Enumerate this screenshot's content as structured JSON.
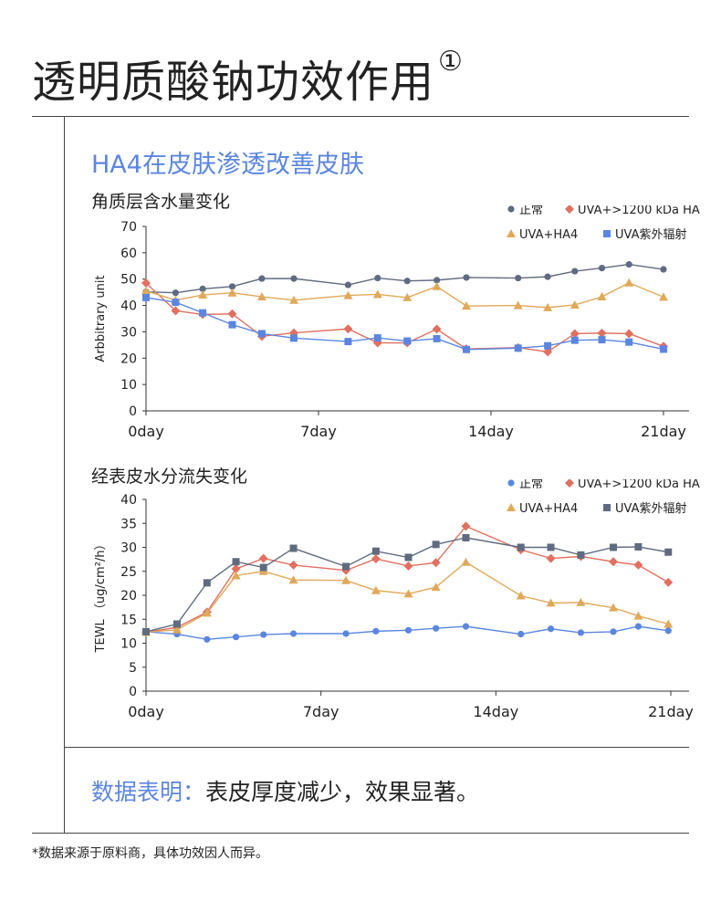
{
  "header": {
    "title": "透明质酸钠功效作用",
    "title_mark": "①"
  },
  "section": {
    "subtitle": "HA4在皮肤渗透改善皮肤"
  },
  "conclusion": {
    "label": "数据表明：",
    "text": "表皮厚度减少，效果显著。"
  },
  "footnote": "*数据来源于原料商，具体功效因人而异。",
  "chart_data": [
    {
      "type": "line",
      "title": "角质层含水量变化",
      "xlabel": "",
      "ylabel": "Arbbitrary unit",
      "ylim": [
        0,
        70
      ],
      "yticks": [
        0,
        10,
        20,
        30,
        40,
        50,
        60,
        70
      ],
      "xlim": [
        0,
        21
      ],
      "xticks": [
        {
          "v": 0,
          "label": "0day"
        },
        {
          "v": 7,
          "label": "7day"
        },
        {
          "v": 14,
          "label": "14day"
        },
        {
          "v": 21,
          "label": "21day"
        }
      ],
      "legend": "top-right",
      "x": [
        0,
        1.2,
        2.3,
        3.5,
        4.7,
        6,
        8.2,
        9.4,
        10.6,
        11.8,
        13,
        15.1,
        16.3,
        17.4,
        18.5,
        19.6,
        21
      ],
      "series": [
        {
          "name": "正常",
          "marker": "circle",
          "color": "#5f6b80",
          "values": [
            45.2,
            44.8,
            46.3,
            47.2,
            50.2,
            50.2,
            47.8,
            50.4,
            49.3,
            49.6,
            50.6,
            50.4,
            50.9,
            53,
            54.2,
            55.6,
            53.7
          ]
        },
        {
          "name": "UVA+>1200 kDa HA",
          "marker": "diamond",
          "color": "#e07060",
          "values": [
            48.5,
            38,
            36.6,
            36.8,
            28.3,
            29.6,
            31.1,
            25.8,
            25.8,
            31,
            23.5,
            24,
            22.4,
            29.3,
            29.5,
            29.3,
            24.5
          ]
        },
        {
          "name": "UVA+HA4",
          "marker": "triangle",
          "color": "#e0a95a",
          "values": [
            45.5,
            42,
            44,
            44.8,
            43.3,
            42,
            43.8,
            44.2,
            43,
            47.2,
            39.8,
            40,
            39.2,
            40.2,
            43.3,
            48.6,
            43.2
          ]
        },
        {
          "name": "UVA紫外辐射",
          "marker": "square",
          "color": "#5b86e0",
          "values": [
            43,
            41.2,
            37.2,
            32.7,
            29.3,
            27.6,
            26.3,
            27.7,
            26.5,
            27.4,
            23.3,
            23.8,
            24.7,
            26.8,
            27,
            26.1,
            23.4
          ]
        }
      ]
    },
    {
      "type": "line",
      "title": "经表皮水分流失变化",
      "xlabel": "",
      "ylabel": "TEWL （ug/cm²/h）",
      "ylim": [
        0,
        40
      ],
      "yticks": [
        0,
        5,
        10,
        15,
        20,
        25,
        30,
        35,
        40
      ],
      "xlim": [
        0,
        21
      ],
      "xticks": [
        {
          "v": 0,
          "label": "0day"
        },
        {
          "v": 7,
          "label": "7day"
        },
        {
          "v": 14,
          "label": "14day"
        },
        {
          "v": 21,
          "label": "21day"
        }
      ],
      "legend": "top-right",
      "x": [
        0,
        1.24,
        2.44,
        3.6,
        4.7,
        5.9,
        8,
        9.2,
        10.5,
        11.6,
        12.8,
        15,
        16.2,
        17.4,
        18.7,
        19.7,
        20.9
      ],
      "series": [
        {
          "name": "正常",
          "marker": "circle",
          "color": "#5b86e0",
          "values": [
            12.4,
            11.9,
            10.8,
            11.3,
            11.8,
            12,
            12,
            12.5,
            12.7,
            13.1,
            13.5,
            11.9,
            13,
            12.2,
            12.4,
            13.5,
            12.6
          ]
        },
        {
          "name": "UVA+>1200 kDa HA",
          "marker": "diamond",
          "color": "#e07060",
          "values": [
            12.3,
            13.3,
            16.5,
            25.5,
            27.7,
            26.3,
            25.2,
            27.6,
            26.1,
            26.8,
            34.4,
            29.5,
            27.7,
            28.1,
            27,
            26.3,
            22.7
          ]
        },
        {
          "name": "UVA+HA4",
          "marker": "triangle",
          "color": "#e0a95a",
          "values": [
            12.3,
            12.8,
            16.3,
            24.1,
            25,
            23.2,
            23.1,
            21,
            20.3,
            21.7,
            26.9,
            19.9,
            18.4,
            18.5,
            17.4,
            15.7,
            14
          ]
        },
        {
          "name": "UVA紫外辐射",
          "marker": "square",
          "color": "#5f6b80",
          "values": [
            12.4,
            14,
            22.6,
            27,
            25.8,
            29.8,
            26,
            29.2,
            27.9,
            30.6,
            32,
            30,
            30,
            28.4,
            30,
            30.1,
            29
          ]
        }
      ]
    }
  ]
}
